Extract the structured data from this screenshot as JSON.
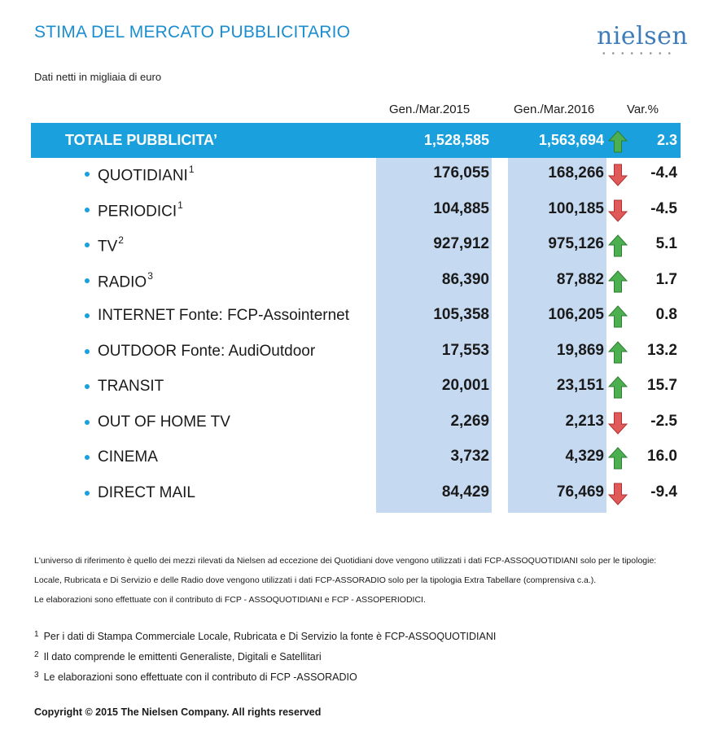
{
  "title": "STIMA DEL MERCATO PUBBLICITARIO",
  "brand": "nielsen",
  "subtitle": "Dati netti in migliaia di euro",
  "colors": {
    "accent": "#1aa0dd",
    "band": "#c5d9f1",
    "up": "#4caf50",
    "down": "#e05a5a"
  },
  "chart_data": {
    "type": "table",
    "columns": [
      "Gen./Mar.2015",
      "Gen./Mar.2016",
      "Var.%"
    ],
    "total": {
      "label": "TOTALE PUBBLICITA’",
      "v2015": "1,528,585",
      "v2016": "1,563,694",
      "trend": "up",
      "var": "2.3"
    },
    "rows": [
      {
        "label": "QUOTIDIANI",
        "sup": "1",
        "v2015": "176,055",
        "v2016": "168,266",
        "trend": "down",
        "var": "-4.4"
      },
      {
        "label": "PERIODICI",
        "sup": "1",
        "v2015": "104,885",
        "v2016": "100,185",
        "trend": "down",
        "var": "-4.5"
      },
      {
        "label": "TV",
        "sup": "2",
        "v2015": "927,912",
        "v2016": "975,126",
        "trend": "up",
        "var": "5.1"
      },
      {
        "label": "RADIO",
        "sup": "3",
        "v2015": "86,390",
        "v2016": "87,882",
        "trend": "up",
        "var": "1.7"
      },
      {
        "label": "INTERNET  Fonte: FCP-Assointernet",
        "sup": "",
        "v2015": "105,358",
        "v2016": "106,205",
        "trend": "up",
        "var": "0.8"
      },
      {
        "label": "OUTDOOR  Fonte: AudiOutdoor",
        "sup": "",
        "v2015": "17,553",
        "v2016": "19,869",
        "trend": "up",
        "var": "13.2"
      },
      {
        "label": "TRANSIT",
        "sup": "",
        "v2015": "20,001",
        "v2016": "23,151",
        "trend": "up",
        "var": "15.7"
      },
      {
        "label": "OUT OF HOME TV",
        "sup": "",
        "v2015": "2,269",
        "v2016": "2,213",
        "trend": "down",
        "var": "-2.5"
      },
      {
        "label": "CINEMA",
        "sup": "",
        "v2015": "3,732",
        "v2016": "4,329",
        "trend": "up",
        "var": "16.0"
      },
      {
        "label": "DIRECT MAIL",
        "sup": "",
        "v2015": "84,429",
        "v2016": "76,469",
        "trend": "down",
        "var": "-9.4"
      }
    ]
  },
  "notes": [
    "L'universo di riferimento è quello dei mezzi rilevati da Nielsen ad eccezione dei Quotidiani dove vengono utilizzati i dati FCP-ASSOQUOTIDIANI solo per le tipologie:",
    "Locale, Rubricata e Di Servizio e delle Radio dove vengono utilizzati i dati FCP-ASSORADIO solo per la tipologia Extra Tabellare (comprensiva c.a.).",
    "Le elaborazioni sono effettuate con il contributo di FCP - ASSOQUOTIDIANI e FCP - ASSOPERIODICI."
  ],
  "footnotes": [
    {
      "num": "1",
      "text": "Per i dati di Stampa Commerciale Locale, Rubricata e Di Servizio la fonte è  FCP-ASSOQUOTIDIANI"
    },
    {
      "num": "2",
      "text": "Il dato comprende le emittenti Generaliste, Digitali e Satellitari"
    },
    {
      "num": "3",
      "text": "Le elaborazioni sono effettuate con il contributo di FCP -ASSORADIO"
    }
  ],
  "copyright": "Copyright © 2015 The Nielsen Company. All rights reserved"
}
